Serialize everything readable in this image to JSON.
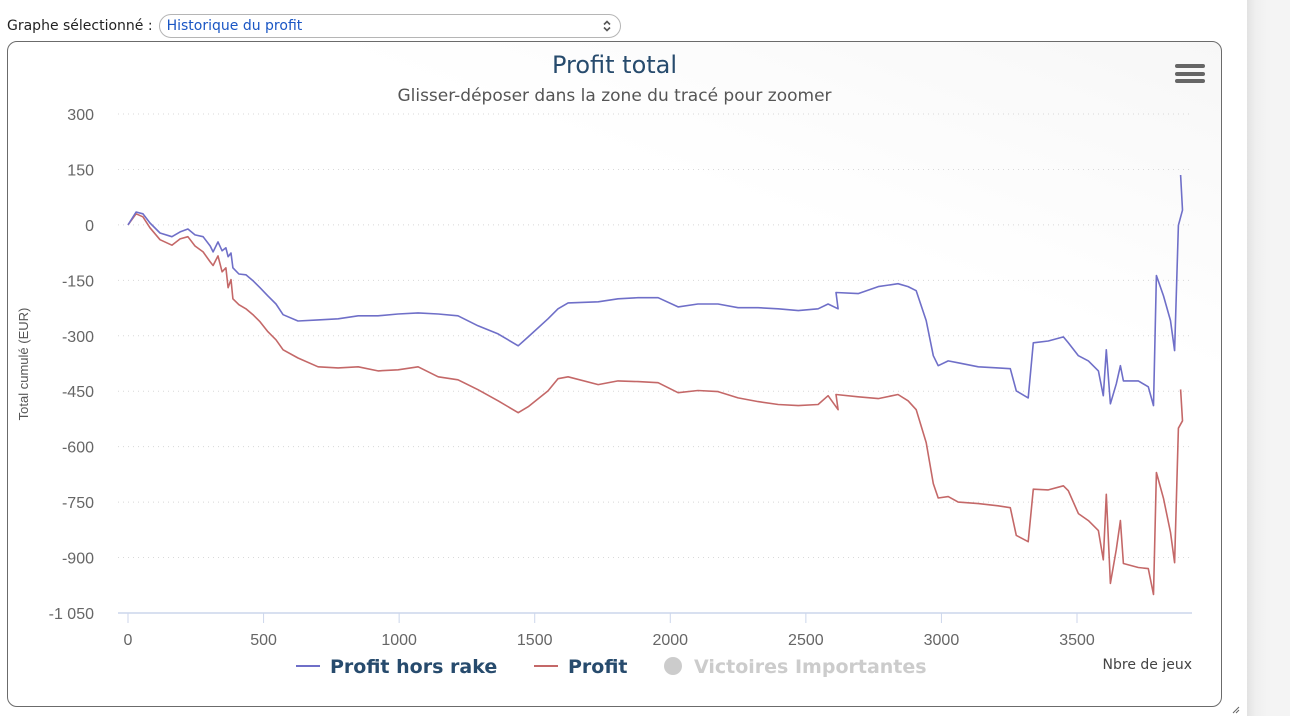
{
  "header": {
    "label": "Graphe sélectionné :",
    "select_value": "Historique du profit"
  },
  "menu_icon": "hamburger-menu-icon",
  "chart_data": {
    "type": "line",
    "title": "Profit total",
    "subtitle": "Glisser-déposer dans la zone du tracé pour zoomer",
    "xlabel": "Nbre de jeux",
    "ylabel": "Total cumulé (EUR)",
    "xlim": [
      0,
      3920
    ],
    "ylim": [
      -1050,
      300
    ],
    "x_ticks": [
      0,
      500,
      1000,
      1500,
      2000,
      2500,
      3000,
      3500
    ],
    "x_tick_labels": [
      "0",
      "500",
      "1000",
      "1500",
      "2000",
      "2500",
      "3000",
      "3500"
    ],
    "y_ticks": [
      300,
      150,
      0,
      -150,
      -300,
      -450,
      -600,
      -750,
      -900,
      -1050
    ],
    "y_tick_labels": [
      "300",
      "150",
      "0",
      "-150",
      "-300",
      "-450",
      "-600",
      "-750",
      "-900",
      "-1 050"
    ],
    "grid": "horizontal-dotted",
    "legend_position": "bottom",
    "legend": [
      {
        "name": "Profit hors rake",
        "symbol": "line",
        "color": "#6f6fc8",
        "visible": true
      },
      {
        "name": "Profit",
        "symbol": "line",
        "color": "#c46868",
        "visible": true
      },
      {
        "name": "Victoires Importantes",
        "symbol": "circle",
        "color": "#cccccc",
        "visible": false
      }
    ],
    "series": [
      {
        "name": "Profit hors rake",
        "color": "#6f6fc8",
        "x": [
          0,
          30,
          55,
          81,
          118,
          162,
          192,
          221,
          247,
          277,
          303,
          314,
          332,
          347,
          361,
          369,
          380,
          387,
          409,
          435,
          461,
          487,
          516,
          546,
          572,
          627,
          701,
          775,
          849,
          922,
          996,
          1070,
          1144,
          1217,
          1291,
          1365,
          1439,
          1476,
          1549,
          1586,
          1623,
          1734,
          1807,
          1881,
          1955,
          2029,
          2102,
          2176,
          2250,
          2324,
          2398,
          2472,
          2545,
          2582,
          2619,
          2611,
          2693,
          2767,
          2840,
          2877,
          2907,
          2944,
          2970,
          2988,
          3025,
          3062,
          3136,
          3209,
          3254,
          3276,
          3320,
          3339,
          3394,
          3450,
          3468,
          3505,
          3542,
          3579,
          3597,
          3608,
          3623,
          3645,
          3660,
          3671,
          3726,
          3763,
          3782,
          3793,
          3819,
          3845,
          3860,
          3874,
          3889,
          3882
        ],
        "y": [
          0,
          35,
          30,
          5,
          -22,
          -32,
          -19,
          -11,
          -27,
          -32,
          -57,
          -73,
          -46,
          -70,
          -62,
          -86,
          -76,
          -116,
          -133,
          -135,
          -151,
          -170,
          -192,
          -214,
          -243,
          -260,
          -257,
          -254,
          -246,
          -246,
          -241,
          -238,
          -241,
          -246,
          -273,
          -295,
          -327,
          -303,
          -254,
          -227,
          -211,
          -208,
          -200,
          -197,
          -197,
          -222,
          -214,
          -214,
          -224,
          -224,
          -227,
          -232,
          -227,
          -214,
          -227,
          -183,
          -186,
          -167,
          -159,
          -167,
          -178,
          -259,
          -354,
          -381,
          -368,
          -373,
          -384,
          -387,
          -389,
          -449,
          -468,
          -319,
          -314,
          -303,
          -319,
          -354,
          -368,
          -395,
          -462,
          -338,
          -484,
          -430,
          -381,
          -422,
          -422,
          -438,
          -489,
          -137,
          -192,
          -259,
          -340,
          -1,
          40,
          135
        ]
      },
      {
        "name": "Profit",
        "color": "#c46868",
        "x": [
          0,
          30,
          55,
          81,
          118,
          162,
          192,
          221,
          247,
          277,
          303,
          314,
          332,
          347,
          361,
          369,
          380,
          387,
          409,
          435,
          461,
          487,
          516,
          546,
          572,
          627,
          701,
          775,
          849,
          922,
          996,
          1070,
          1144,
          1217,
          1291,
          1365,
          1439,
          1476,
          1549,
          1586,
          1623,
          1734,
          1807,
          1881,
          1955,
          2029,
          2102,
          2176,
          2250,
          2324,
          2398,
          2472,
          2545,
          2582,
          2619,
          2611,
          2693,
          2767,
          2840,
          2877,
          2907,
          2944,
          2970,
          2988,
          3025,
          3062,
          3136,
          3209,
          3254,
          3276,
          3320,
          3339,
          3394,
          3450,
          3468,
          3505,
          3542,
          3579,
          3597,
          3608,
          3623,
          3645,
          3660,
          3671,
          3726,
          3763,
          3782,
          3793,
          3819,
          3845,
          3860,
          3874,
          3889,
          3882
        ],
        "y": [
          0,
          30,
          22,
          -8,
          -40,
          -55,
          -38,
          -32,
          -57,
          -73,
          -100,
          -110,
          -84,
          -127,
          -116,
          -170,
          -148,
          -200,
          -216,
          -227,
          -243,
          -262,
          -289,
          -311,
          -338,
          -360,
          -384,
          -387,
          -384,
          -395,
          -392,
          -384,
          -411,
          -419,
          -446,
          -476,
          -508,
          -492,
          -449,
          -416,
          -411,
          -432,
          -422,
          -424,
          -427,
          -454,
          -448,
          -451,
          -468,
          -478,
          -486,
          -489,
          -486,
          -462,
          -500,
          -459,
          -465,
          -470,
          -459,
          -476,
          -500,
          -589,
          -700,
          -739,
          -735,
          -750,
          -754,
          -760,
          -765,
          -840,
          -857,
          -715,
          -717,
          -706,
          -719,
          -781,
          -800,
          -827,
          -906,
          -729,
          -970,
          -878,
          -800,
          -916,
          -927,
          -930,
          -1000,
          -670,
          -740,
          -832,
          -914,
          -550,
          -530,
          -445
        ]
      }
    ]
  }
}
